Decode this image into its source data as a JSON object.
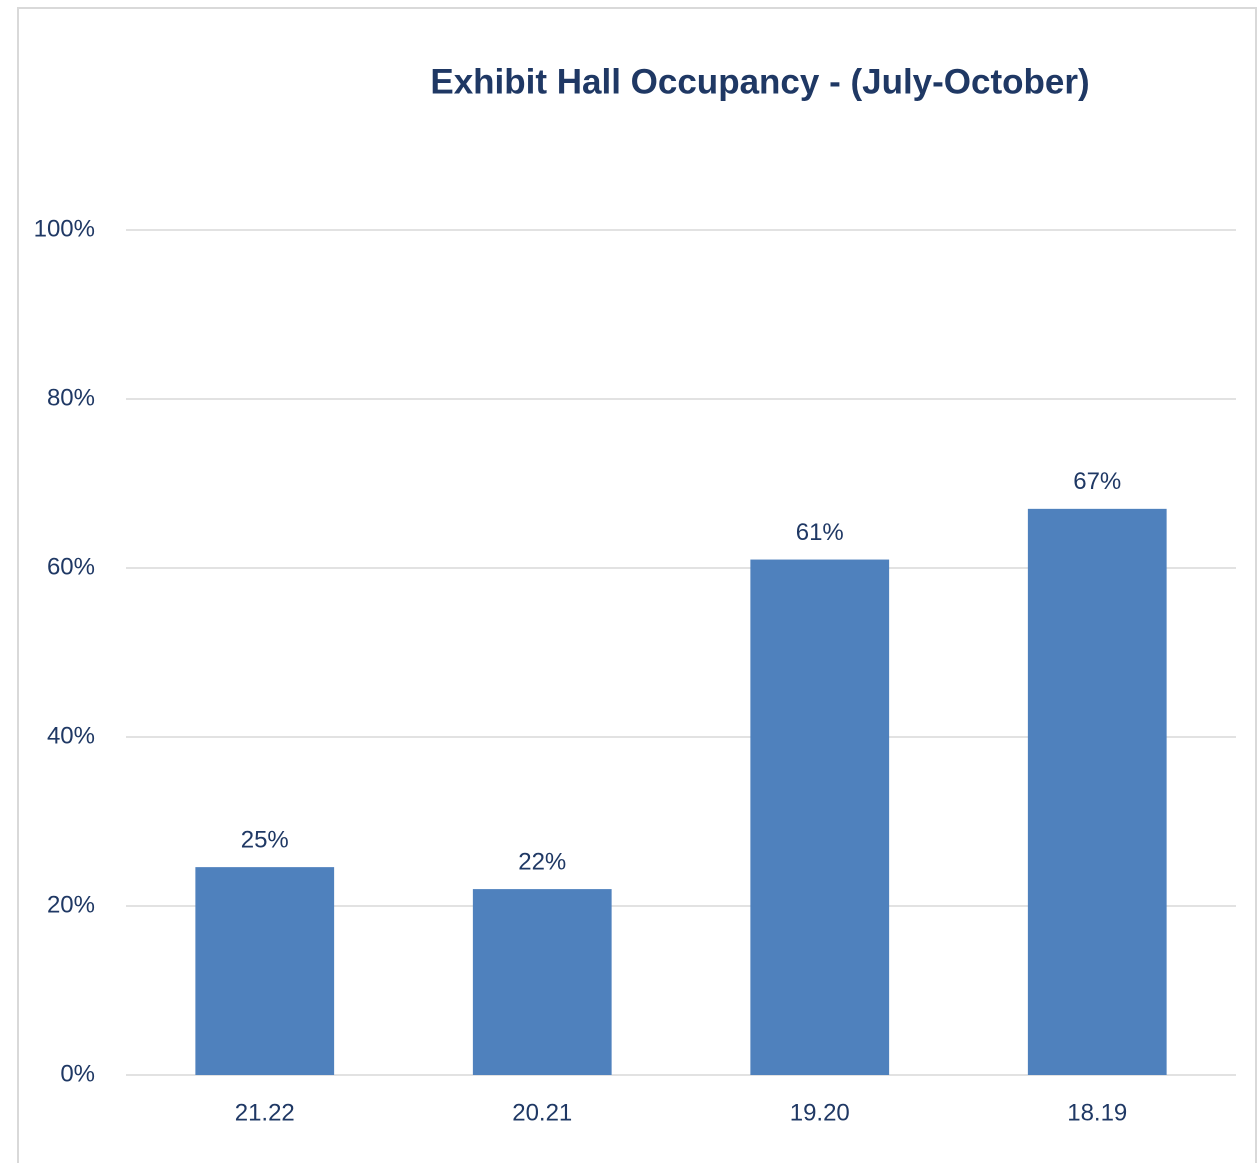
{
  "chart_data": {
    "type": "bar",
    "title": "Exhibit Hall Occupancy - (July-October)",
    "categories": [
      "21.22",
      "20.21",
      "19.20",
      "18.19"
    ],
    "values": [
      24.6,
      22,
      61,
      67
    ],
    "value_labels": [
      "25%",
      "22%",
      "61%",
      "67%"
    ],
    "color": "#4f81bd",
    "ylim": [
      0,
      100
    ],
    "yticks": [
      {
        "value": 0,
        "label": "0%"
      },
      {
        "value": 20,
        "label": "20%"
      },
      {
        "value": 40,
        "label": "40%"
      },
      {
        "value": 60,
        "label": "60%"
      },
      {
        "value": 80,
        "label": "80%"
      },
      {
        "value": 100,
        "label": "100%"
      }
    ],
    "grid": true
  }
}
